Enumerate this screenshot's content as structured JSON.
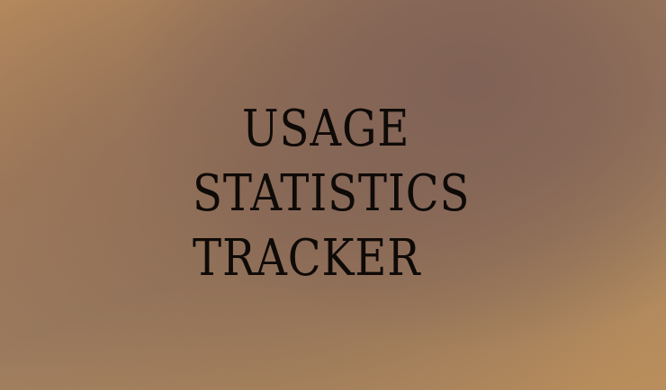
{
  "title": {
    "lines": [
      "USAGE",
      "STATISTICS",
      "TRACKER"
    ]
  }
}
